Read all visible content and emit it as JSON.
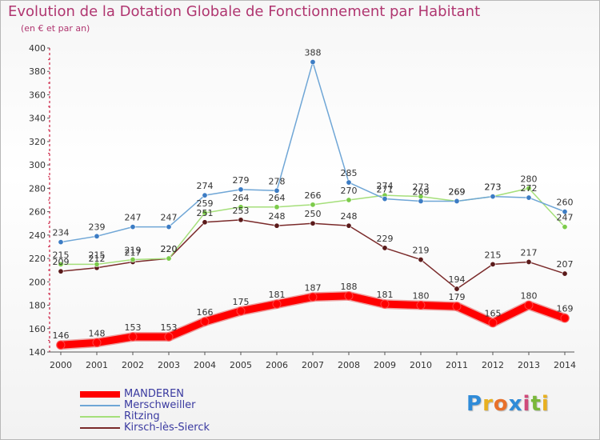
{
  "header": {
    "title": "Evolution de la Dotation Globale de Fonctionnement par Habitant",
    "subtitle": "(en € et par an)"
  },
  "logo": {
    "text": "Proxiti",
    "letters": [
      {
        "ch": "P",
        "color": "#2f8bd8"
      },
      {
        "ch": "r",
        "color": "#e8b020"
      },
      {
        "ch": "o",
        "color": "#e8702a"
      },
      {
        "ch": "x",
        "color": "#2f8bd8"
      },
      {
        "ch": "i",
        "color": "#d04a7a"
      },
      {
        "ch": "t",
        "color": "#7ab83a"
      },
      {
        "ch": "i",
        "color": "#e8b020"
      }
    ]
  },
  "chart_data": {
    "type": "line",
    "x": [
      "2000",
      "2001",
      "2002",
      "2003",
      "2004",
      "2005",
      "2006",
      "2007",
      "2008",
      "2009",
      "2010",
      "2011",
      "2012",
      "2013",
      "2014"
    ],
    "ylim": [
      140,
      400
    ],
    "yticks": [
      140,
      160,
      180,
      200,
      220,
      240,
      260,
      280,
      300,
      320,
      340,
      360,
      380,
      400
    ],
    "grid": false,
    "legend_position": "bottom-left",
    "series": [
      {
        "name": "MANDEREN",
        "color": "#ff0000",
        "marker_color": "#ff0000",
        "values": [
          146,
          148,
          153,
          153,
          166,
          175,
          181,
          187,
          188,
          181,
          180,
          179,
          165,
          180,
          169
        ],
        "labels": [
          "146",
          "148",
          "153",
          "153",
          "166",
          "175",
          "181",
          "187",
          "188",
          "181",
          "180",
          "179",
          "165",
          "180",
          "169"
        ]
      },
      {
        "name": "Merschweiller",
        "color": "#6fa6d6",
        "marker_color": "#3c7cc4",
        "values": [
          234,
          239,
          247,
          247,
          274,
          279,
          278,
          388,
          285,
          271,
          269,
          269,
          273,
          272,
          260
        ],
        "labels": [
          "234",
          "239",
          "247",
          "247",
          "274",
          "279",
          "278",
          "388",
          "285",
          "271",
          "269",
          "269",
          "273",
          "272",
          "260"
        ]
      },
      {
        "name": "Ritzing",
        "color": "#a5df7a",
        "marker_color": "#7ccb4a",
        "values": [
          215,
          215,
          219,
          220,
          259,
          264,
          264,
          266,
          270,
          274,
          273,
          269,
          273,
          280,
          247
        ],
        "labels": [
          "215",
          "215",
          "219",
          "220",
          "259",
          "264",
          "264",
          "266",
          "270",
          "274",
          "273",
          "269",
          "273",
          "280",
          "247"
        ]
      },
      {
        "name": "Kirsch-lès-Sierck",
        "color": "#7a2a2a",
        "marker_color": "#5a1a1a",
        "values": [
          209,
          212,
          217,
          220,
          251,
          253,
          248,
          250,
          248,
          229,
          219,
          194,
          215,
          217,
          207
        ],
        "labels": [
          "209",
          "212",
          "217",
          "220",
          "251",
          "253",
          "248",
          "250",
          "248",
          "229",
          "219",
          "194",
          "215",
          "217",
          "207"
        ]
      }
    ]
  }
}
